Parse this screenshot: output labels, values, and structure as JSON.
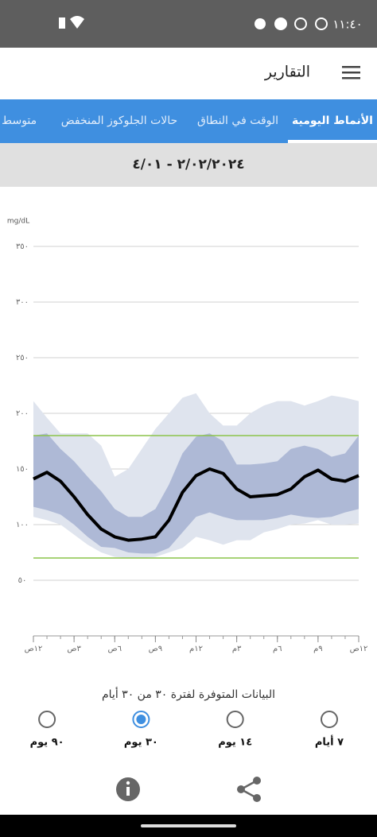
{
  "status_bar": {
    "time": "١١:٤٠"
  },
  "header": {
    "title": "التقارير"
  },
  "tabs": {
    "items": [
      "الأنماط اليومية",
      "الوقت في النطاق",
      "حالات الجلوكوز المنخفض",
      "متوسط ا"
    ],
    "selected": 0
  },
  "date_range": "٢/٠٢/٢٠٢٤ - ٤/٠١",
  "chart_data": {
    "type": "line",
    "y_unit": "mg/dL",
    "x": [
      0,
      1,
      2,
      3,
      4,
      5,
      6,
      7,
      8,
      9,
      10,
      11,
      12,
      13,
      14,
      15,
      16,
      17,
      18,
      19,
      20,
      21,
      22,
      23,
      24
    ],
    "xlim": [
      0,
      24
    ],
    "xticks": [
      {
        "value": 0,
        "label": "١٢ص"
      },
      {
        "value": 3,
        "label": "٣ص"
      },
      {
        "value": 6,
        "label": "٦ص"
      },
      {
        "value": 9,
        "label": "٩ص"
      },
      {
        "value": 12,
        "label": "١٢م"
      },
      {
        "value": 15,
        "label": "٣م"
      },
      {
        "value": 18,
        "label": "٦م"
      },
      {
        "value": 21,
        "label": "٩م"
      },
      {
        "value": 24,
        "label": "١٢ص"
      }
    ],
    "ylim": [
      0,
      350
    ],
    "yticks": [
      {
        "value": 50,
        "label": "٥٠"
      },
      {
        "value": 100,
        "label": "١٠٠"
      },
      {
        "value": 150,
        "label": "١٥٠"
      },
      {
        "value": 200,
        "label": "٢٠٠"
      },
      {
        "value": 250,
        "label": "٢٥٠"
      },
      {
        "value": 300,
        "label": "٣٠٠"
      },
      {
        "value": 350,
        "label": "٣٥٠"
      }
    ],
    "grid": true,
    "target_range": [
      70,
      180
    ],
    "target_color": "#8bc34a",
    "bands": [
      {
        "color": "#dfe4ee",
        "high": [
          211,
          196,
          182,
          182,
          182,
          171,
          143,
          150,
          168,
          186,
          200,
          214,
          218,
          200,
          189,
          189,
          200,
          207,
          211,
          211,
          207,
          211,
          216,
          214,
          211
        ],
        "low": [
          107,
          104,
          100,
          91,
          82,
          75,
          71,
          70,
          70,
          71,
          75,
          79,
          89,
          86,
          82,
          86,
          86,
          93,
          96,
          100,
          101,
          104,
          100,
          100,
          101
        ]
      },
      {
        "color": "#aeb9d6",
        "high": [
          180,
          182,
          168,
          157,
          143,
          130,
          114,
          107,
          107,
          114,
          136,
          164,
          179,
          182,
          175,
          154,
          154,
          155,
          157,
          168,
          171,
          168,
          161,
          164,
          180
        ],
        "low": [
          116,
          113,
          109,
          100,
          89,
          80,
          79,
          75,
          74,
          74,
          79,
          93,
          107,
          111,
          107,
          104,
          104,
          104,
          106,
          109,
          107,
          106,
          107,
          111,
          114
        ]
      }
    ],
    "series": [
      {
        "color": "#000000",
        "values": [
          141,
          147,
          139,
          125,
          109,
          96,
          89,
          86,
          87,
          89,
          104,
          129,
          144,
          150,
          146,
          132,
          125,
          126,
          127,
          132,
          143,
          149,
          141,
          139,
          144
        ]
      }
    ]
  },
  "availability": "البيانات المتوفرة لفترة ٣٠ من ٣٠ أيام",
  "period_options": {
    "items": [
      "٧ أيام",
      "١٤ يوم",
      "٣٠ يوم",
      "٩٠ يوم"
    ],
    "selected": 2
  }
}
